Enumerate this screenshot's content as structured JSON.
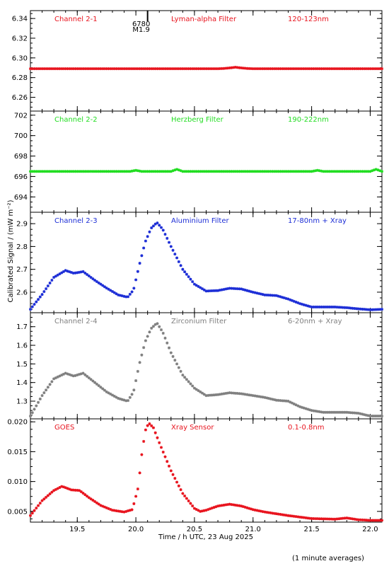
{
  "figure": {
    "ylabel": "Calibrated Signal  / (mW m⁻²)",
    "xlabel": "Time / h UTC, 23 Aug 2025",
    "footnote": "(1 minute averages)",
    "xlim": [
      19.1,
      22.1
    ],
    "xticks": [
      19.5,
      20.0,
      20.5,
      21.0,
      21.5,
      22.0
    ],
    "xtick_labels": [
      "19.5",
      "20.0",
      "20.5",
      "21.0",
      "21.5",
      "22.0"
    ],
    "flare_marker": {
      "x": 20.1,
      "region": "6780",
      "class": "M1.9"
    }
  },
  "chart_data": [
    {
      "type": "scatter",
      "channel": "Channel 2-1",
      "filter": "Lyman-alpha Filter",
      "band": "120-123nm",
      "color": "#e8141e",
      "ylim": [
        6.246,
        6.348
      ],
      "yticks": [
        6.26,
        6.28,
        6.3,
        6.32,
        6.34
      ],
      "ytick_labels": [
        "6.26",
        "6.28",
        "6.30",
        "6.32",
        "6.34"
      ],
      "x": [
        19.1,
        20.0,
        20.7,
        20.75,
        20.8,
        20.85,
        20.9,
        20.95,
        21.0,
        22.1
      ],
      "y": [
        6.289,
        6.289,
        6.289,
        6.2893,
        6.2898,
        6.2905,
        6.2898,
        6.2893,
        6.289,
        6.289
      ]
    },
    {
      "type": "scatter",
      "channel": "Channel 2-2",
      "filter": "Herzberg Filter",
      "band": "190-222nm",
      "color": "#22dd22",
      "ylim": [
        692.5,
        702.4
      ],
      "yticks": [
        694,
        696,
        698,
        700,
        702
      ],
      "ytick_labels": [
        "694",
        "696",
        "698",
        "700",
        "702"
      ],
      "x": [
        19.1,
        19.95,
        20.0,
        20.05,
        20.3,
        20.35,
        20.4,
        21.5,
        21.55,
        21.6,
        22.0,
        22.05,
        22.1
      ],
      "y": [
        696.5,
        696.5,
        696.6,
        696.5,
        696.5,
        696.7,
        696.5,
        696.5,
        696.6,
        696.5,
        696.5,
        696.7,
        696.5
      ]
    },
    {
      "type": "scatter",
      "channel": "Channel 2-3",
      "filter": "Aluminium Filter",
      "band": "17-80nm + Xray",
      "color": "#1d2ed6",
      "ylim": [
        2.51,
        2.95
      ],
      "yticks": [
        2.6,
        2.7,
        2.8,
        2.9
      ],
      "ytick_labels": [
        "2.6",
        "2.7",
        "2.8",
        "2.9"
      ],
      "x": [
        19.1,
        19.2,
        19.3,
        19.4,
        19.47,
        19.55,
        19.65,
        19.75,
        19.85,
        19.93,
        19.98,
        20.03,
        20.08,
        20.13,
        20.18,
        20.23,
        20.3,
        20.4,
        20.5,
        20.6,
        20.7,
        20.8,
        20.9,
        21.0,
        21.1,
        21.2,
        21.3,
        21.4,
        21.5,
        21.6,
        21.7,
        21.8,
        21.9,
        22.0,
        22.1
      ],
      "y": [
        2.525,
        2.59,
        2.665,
        2.695,
        2.683,
        2.69,
        2.652,
        2.618,
        2.588,
        2.578,
        2.61,
        2.72,
        2.82,
        2.88,
        2.905,
        2.875,
        2.8,
        2.7,
        2.635,
        2.605,
        2.607,
        2.617,
        2.614,
        2.6,
        2.588,
        2.585,
        2.57,
        2.55,
        2.535,
        2.535,
        2.535,
        2.532,
        2.527,
        2.523,
        2.525
      ]
    },
    {
      "type": "scatter",
      "channel": "Channel 2-4",
      "filter": "Zirconium Filter",
      "band": "6-20nm + Xray",
      "color": "#808080",
      "ylim": [
        1.205,
        1.775
      ],
      "yticks": [
        1.3,
        1.4,
        1.5,
        1.6,
        1.7
      ],
      "ytick_labels": [
        "1.3",
        "1.4",
        "1.5",
        "1.6",
        "1.7"
      ],
      "x": [
        19.1,
        19.2,
        19.3,
        19.4,
        19.47,
        19.55,
        19.65,
        19.75,
        19.85,
        19.93,
        19.98,
        20.03,
        20.08,
        20.13,
        20.18,
        20.23,
        20.3,
        20.4,
        20.5,
        20.6,
        20.7,
        20.8,
        20.9,
        21.0,
        21.1,
        21.2,
        21.3,
        21.4,
        21.5,
        21.6,
        21.7,
        21.8,
        21.9,
        22.0,
        22.1
      ],
      "y": [
        1.22,
        1.33,
        1.42,
        1.45,
        1.435,
        1.45,
        1.4,
        1.35,
        1.315,
        1.3,
        1.35,
        1.5,
        1.62,
        1.69,
        1.72,
        1.67,
        1.56,
        1.44,
        1.37,
        1.33,
        1.335,
        1.345,
        1.34,
        1.33,
        1.32,
        1.305,
        1.3,
        1.27,
        1.25,
        1.24,
        1.24,
        1.24,
        1.235,
        1.22,
        1.22
      ]
    },
    {
      "type": "scatter",
      "channel": "GOES",
      "filter": "Xray Sensor",
      "band": "0.1-0.8nm",
      "color": "#e8141e",
      "ylim": [
        0.0032,
        0.0205
      ],
      "yticks": [
        0.005,
        0.01,
        0.015,
        0.02
      ],
      "ytick_labels": [
        "0.005",
        "0.010",
        "0.015",
        "0.020"
      ],
      "x": [
        19.1,
        19.2,
        19.3,
        19.37,
        19.45,
        19.52,
        19.6,
        19.7,
        19.8,
        19.9,
        19.97,
        20.02,
        20.05,
        20.08,
        20.11,
        20.15,
        20.2,
        20.3,
        20.4,
        20.5,
        20.55,
        20.6,
        20.7,
        20.8,
        20.9,
        21.0,
        21.1,
        21.2,
        21.3,
        21.5,
        21.7,
        21.8,
        21.9,
        22.0,
        22.1
      ],
      "y": [
        0.0043,
        0.0068,
        0.0085,
        0.0092,
        0.0086,
        0.0085,
        0.0073,
        0.006,
        0.0052,
        0.0049,
        0.0053,
        0.009,
        0.0145,
        0.0185,
        0.0198,
        0.019,
        0.0165,
        0.0118,
        0.008,
        0.0055,
        0.005,
        0.0052,
        0.0059,
        0.0062,
        0.0059,
        0.0053,
        0.0049,
        0.0046,
        0.0043,
        0.0038,
        0.0037,
        0.0039,
        0.0036,
        0.0035,
        0.0035
      ]
    }
  ]
}
